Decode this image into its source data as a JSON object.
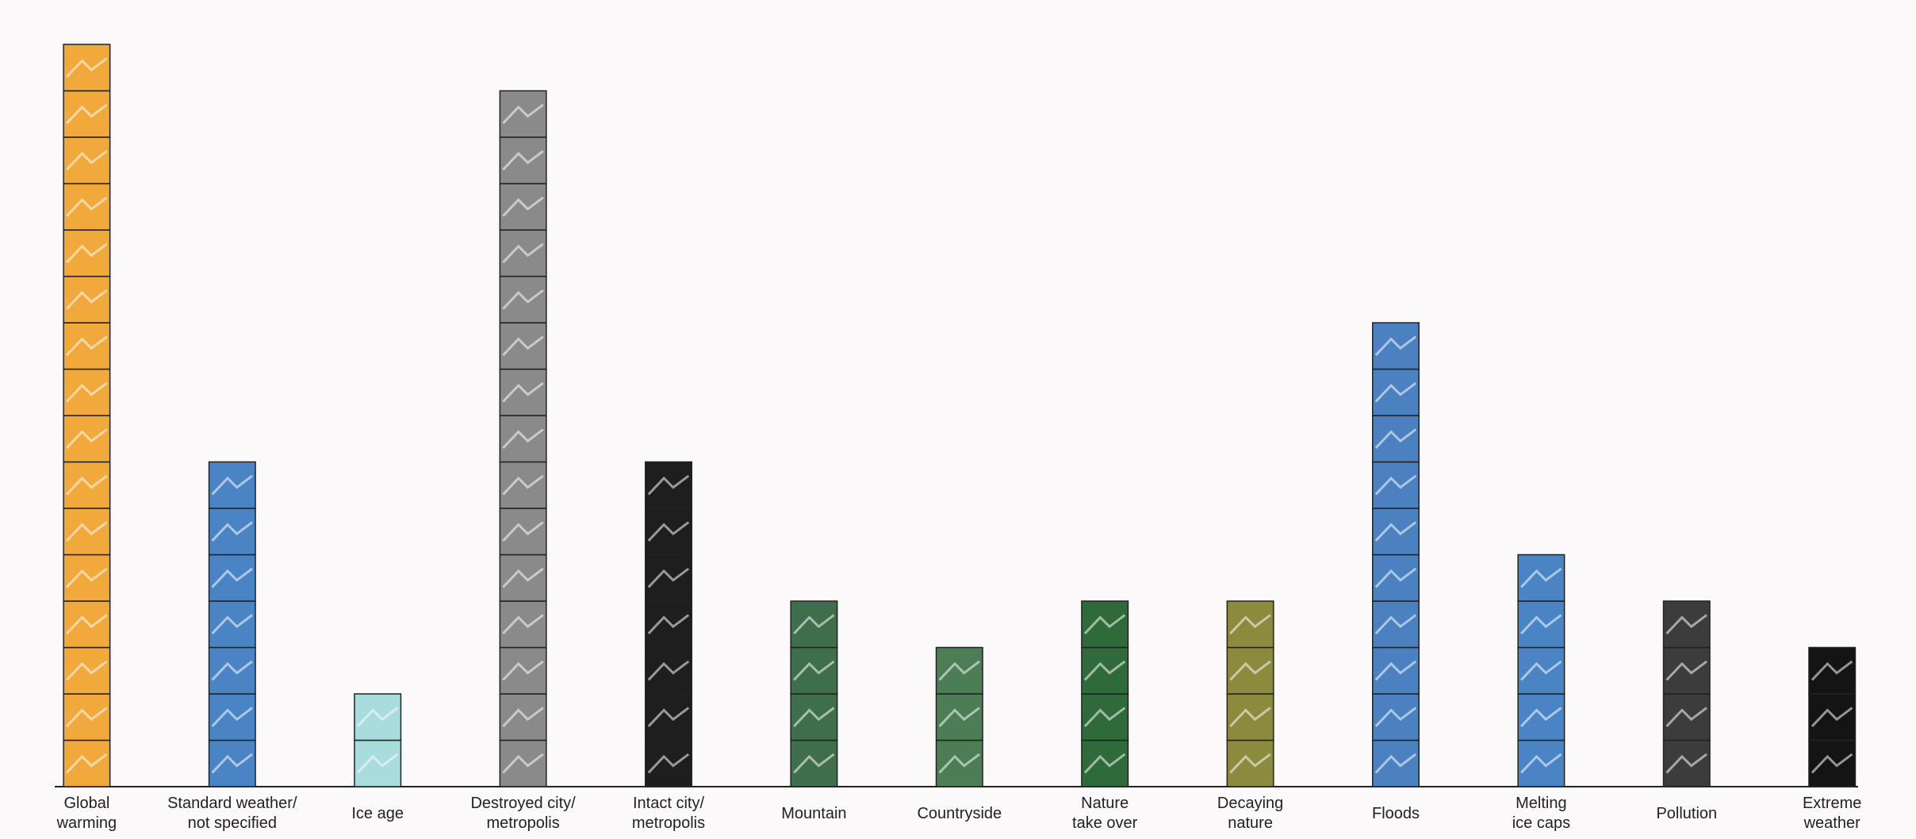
{
  "chart_data": {
    "type": "pictograph",
    "categories": [
      "Global\nwarming",
      "Standard weather/\nnot specified",
      "Ice age",
      "Destroyed city/\nmetropolis",
      "Intact city/\nmetropolis",
      "Mountain",
      "Countryside",
      "Nature\ntake over",
      "Decaying\nnature",
      "Floods",
      "Melting\nice caps",
      "Pollution",
      "Extreme\nweather"
    ],
    "values": [
      16,
      7,
      2,
      15,
      7,
      4,
      3,
      4,
      4,
      10,
      5,
      4,
      3
    ],
    "colors": [
      "#f2a93b",
      "#4a84c4",
      "#a9dcdc",
      "#8a8a8a",
      "#1e1e1e",
      "#3f6e4c",
      "#4d7d55",
      "#2f6a3a",
      "#8c8a3c",
      "#4b80c1",
      "#4a84c4",
      "#3c3c3c",
      "#141414"
    ]
  }
}
